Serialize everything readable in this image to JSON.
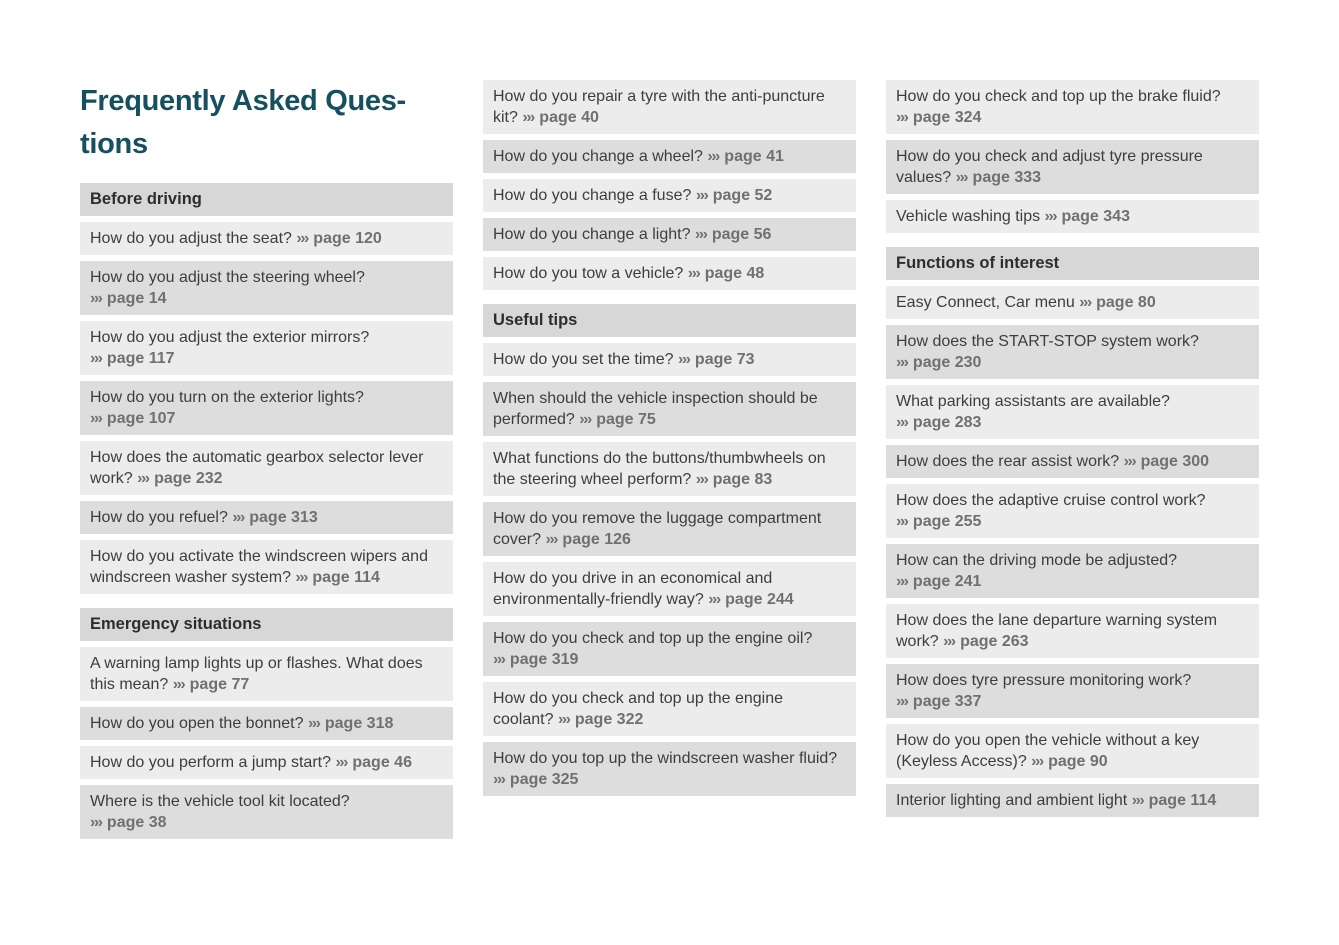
{
  "header": {
    "title": "Frequently Asked Questions",
    "title_lines": [
      "Frequently Asked Ques-",
      "tions"
    ]
  },
  "marker": "›››",
  "colors": {
    "title_text": "#15505e",
    "section_header_bg": "#d7d7d7",
    "row_light_bg": "#ececec",
    "row_dark_bg": "#dddddd",
    "question_text": "#3d3d3d",
    "page_ref_text": "#707070",
    "page_bg": "#ffffff"
  },
  "columns": [
    {
      "blocks": [
        {
          "type": "header",
          "label": "Before driving"
        },
        {
          "type": "item",
          "q": "How do you adjust the seat?",
          "page": "page 120",
          "br": false
        },
        {
          "type": "item",
          "q": "How do you adjust the steering wheel?",
          "page": "page 14",
          "br": true
        },
        {
          "type": "item",
          "q": "How do you adjust the exterior mirrors?",
          "page": "page 117",
          "br": true
        },
        {
          "type": "item",
          "q": "How do you turn on the exterior lights?",
          "page": "page 107",
          "br": true
        },
        {
          "type": "item",
          "q": "How does the automatic gearbox selector lever work?",
          "page": "page 232",
          "br": false
        },
        {
          "type": "item",
          "q": "How do you refuel?",
          "page": "page 313",
          "br": false
        },
        {
          "type": "item",
          "q": "How do you activate the windscreen wipers and windscreen washer system?",
          "page": "page 114",
          "br": false
        },
        {
          "type": "header",
          "label": "Emergency situations"
        },
        {
          "type": "item",
          "q": "A warning lamp lights up or flashes. What does this mean?",
          "page": "page 77",
          "br": false
        },
        {
          "type": "item",
          "q": "How do you open the bonnet?",
          "page": "page 318",
          "br": false
        },
        {
          "type": "item",
          "q": "How do you perform a jump start?",
          "page": "page 46",
          "br": false
        },
        {
          "type": "item",
          "q": "Where is the vehicle tool kit located?",
          "page": "page 38",
          "br": true
        }
      ]
    },
    {
      "blocks": [
        {
          "type": "item",
          "q": "How do you repair a tyre with the anti-puncture kit?",
          "page": "page 40",
          "br": false
        },
        {
          "type": "item",
          "q": "How do you change a wheel?",
          "page": "page 41",
          "br": false
        },
        {
          "type": "item",
          "q": "How do you change a fuse?",
          "page": "page 52",
          "br": false
        },
        {
          "type": "item",
          "q": "How do you change a light?",
          "page": "page 56",
          "br": false
        },
        {
          "type": "item",
          "q": "How do you tow a vehicle?",
          "page": "page 48",
          "br": false
        },
        {
          "type": "header",
          "label": "Useful tips"
        },
        {
          "type": "item",
          "q": "How do you set the time?",
          "page": "page 73",
          "br": false
        },
        {
          "type": "item",
          "q": "When should the vehicle inspection should be performed?",
          "page": "page 75",
          "br": false
        },
        {
          "type": "item",
          "q": "What functions do the buttons/thumbwheels on the steering wheel perform?",
          "page": "page 83",
          "br": false
        },
        {
          "type": "item",
          "q": "How do you remove the luggage compartment cover?",
          "page": "page 126",
          "br": false
        },
        {
          "type": "item",
          "q": "How do you drive in an economical and environmentally-friendly way?",
          "page": "page 244",
          "br": false
        },
        {
          "type": "item",
          "q": "How do you check and top up the engine oil?",
          "page": "page 319",
          "br": true
        },
        {
          "type": "item",
          "q": "How do you check and top up the engine coolant?",
          "page": "page 322",
          "br": false
        },
        {
          "type": "item",
          "q": "How do you top up the windscreen washer fluid?",
          "page": "page 325",
          "br": true
        }
      ]
    },
    {
      "blocks": [
        {
          "type": "item",
          "q": "How do you check and top up the brake fluid?",
          "page": "page 324",
          "br": true
        },
        {
          "type": "item",
          "q": "How do you check and adjust tyre pressure values?",
          "page": "page 333",
          "br": false
        },
        {
          "type": "item",
          "q": "Vehicle washing tips",
          "page": "page 343",
          "br": false
        },
        {
          "type": "header",
          "label": "Functions of interest"
        },
        {
          "type": "item",
          "q": "Easy Connect, Car menu",
          "page": "page 80",
          "br": false
        },
        {
          "type": "item",
          "q": "How does the START-STOP system work?",
          "page": "page 230",
          "br": true
        },
        {
          "type": "item",
          "q": "What parking assistants are available?",
          "page": "page 283",
          "br": true
        },
        {
          "type": "item",
          "q": "How does the rear assist work?",
          "page": "page 300",
          "br": false
        },
        {
          "type": "item",
          "q": "How does the adaptive cruise control work?",
          "page": "page 255",
          "br": true
        },
        {
          "type": "item",
          "q": "How can the driving mode be adjusted?",
          "page": "page 241",
          "br": true
        },
        {
          "type": "item",
          "q": "How does the lane departure warning system work?",
          "page": "page 263",
          "br": false
        },
        {
          "type": "item",
          "q": "How does tyre pressure monitoring work?",
          "page": "page 337",
          "br": true
        },
        {
          "type": "item",
          "q": "How do you open the vehicle without a key (Keyless Access)?",
          "page": "page 90",
          "br": false
        },
        {
          "type": "item",
          "q": "Interior lighting and ambient light",
          "page": "page 114",
          "br": false
        }
      ]
    }
  ]
}
